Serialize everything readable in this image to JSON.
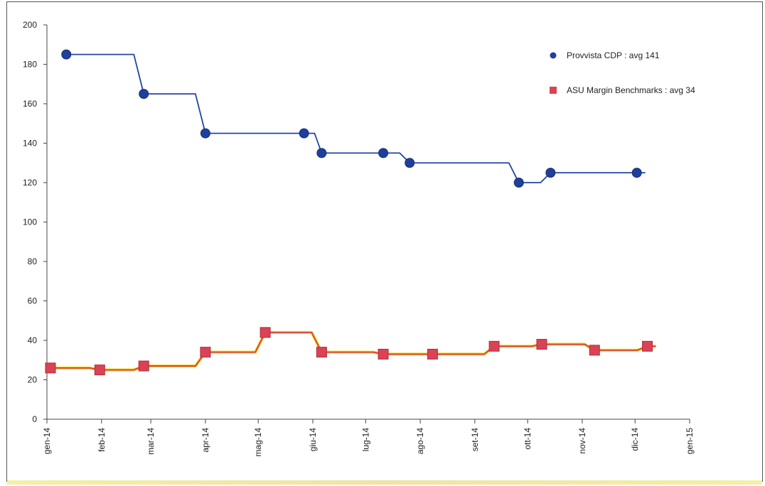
{
  "chart_data": {
    "type": "line",
    "title": "",
    "xlabel": "",
    "ylabel": "",
    "ylim": [
      0,
      200
    ],
    "xlim": [
      "2014-01-01",
      "2015-01-01"
    ],
    "grid": false,
    "legend_position": "top-right",
    "y_ticks": [
      "0",
      "20",
      "40",
      "60",
      "80",
      "100",
      "120",
      "140",
      "160",
      "180",
      "200"
    ],
    "x_ticks": [
      {
        "label": "gen-14",
        "date": "2014-01-01"
      },
      {
        "label": "feb-14",
        "date": "2014-02-01"
      },
      {
        "label": "mar-14",
        "date": "2014-03-01"
      },
      {
        "label": "apr-14",
        "date": "2014-04-01"
      },
      {
        "label": "mag-14",
        "date": "2014-05-01"
      },
      {
        "label": "giu-14",
        "date": "2014-06-01"
      },
      {
        "label": "lug-14",
        "date": "2014-07-01"
      },
      {
        "label": "ago-14",
        "date": "2014-08-01"
      },
      {
        "label": "set-14",
        "date": "2014-09-01"
      },
      {
        "label": "ott-14",
        "date": "2014-10-01"
      },
      {
        "label": "nov-14",
        "date": "2014-11-01"
      },
      {
        "label": "dic-14",
        "date": "2014-12-01"
      },
      {
        "label": "gen-15",
        "date": "2015-01-01"
      }
    ],
    "series": [
      {
        "name": "Provvista CDP : avg 141",
        "color": "#1f3f9c",
        "line_color": "#2343a8",
        "marker": "circle",
        "points": [
          {
            "x": "2014-01-12",
            "y": 185
          },
          {
            "x": "2014-02-25",
            "y": 165
          },
          {
            "x": "2014-04-01",
            "y": 145
          },
          {
            "x": "2014-05-27",
            "y": 145
          },
          {
            "x": "2014-06-06",
            "y": 135
          },
          {
            "x": "2014-07-11",
            "y": 135
          },
          {
            "x": "2014-07-26",
            "y": 130
          },
          {
            "x": "2014-09-26",
            "y": 120
          },
          {
            "x": "2014-10-14",
            "y": 125
          },
          {
            "x": "2014-12-02",
            "y": 125
          }
        ]
      },
      {
        "name": "ASU Margin Benchmarks : avg 34",
        "color": "#d94355",
        "line_color": "#d64040",
        "line_highlight": "#f2d21b",
        "marker": "square",
        "points": [
          {
            "x": "2014-01-03",
            "y": 26
          },
          {
            "x": "2014-01-31",
            "y": 25
          },
          {
            "x": "2014-02-25",
            "y": 27
          },
          {
            "x": "2014-04-01",
            "y": 34
          },
          {
            "x": "2014-05-05",
            "y": 44
          },
          {
            "x": "2014-06-06",
            "y": 34
          },
          {
            "x": "2014-07-11",
            "y": 33
          },
          {
            "x": "2014-08-08",
            "y": 33
          },
          {
            "x": "2014-09-12",
            "y": 37
          },
          {
            "x": "2014-10-09",
            "y": 38
          },
          {
            "x": "2014-11-08",
            "y": 35
          },
          {
            "x": "2014-12-08",
            "y": 37
          }
        ]
      }
    ]
  }
}
